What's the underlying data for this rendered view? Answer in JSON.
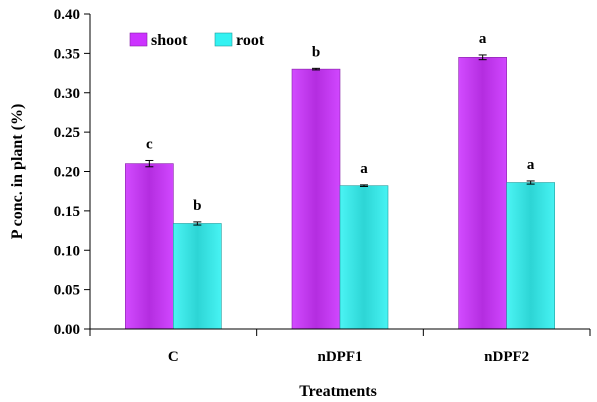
{
  "chart_data": {
    "type": "bar",
    "xlabel": "Treatments",
    "ylabel": "P conc. in plant (%)",
    "ylim": [
      0,
      0.4
    ],
    "yticks": [
      "0.00",
      "0.05",
      "0.10",
      "0.15",
      "0.20",
      "0.25",
      "0.30",
      "0.35",
      "0.40"
    ],
    "categories": [
      "C",
      "nDPF1",
      "nDPF2"
    ],
    "legend_position": "top-left",
    "grid": false,
    "series": [
      {
        "name": "shoot",
        "color": "#cc33ff",
        "values": [
          0.21,
          0.33,
          0.345
        ],
        "errors": [
          0.004,
          0.001,
          0.003
        ],
        "significance": [
          "c",
          "b",
          "a"
        ]
      },
      {
        "name": "root",
        "color": "#33f2f2",
        "values": [
          0.134,
          0.182,
          0.186
        ],
        "errors": [
          0.002,
          0.001,
          0.002
        ],
        "significance": [
          "b",
          "a",
          "a"
        ]
      }
    ]
  }
}
